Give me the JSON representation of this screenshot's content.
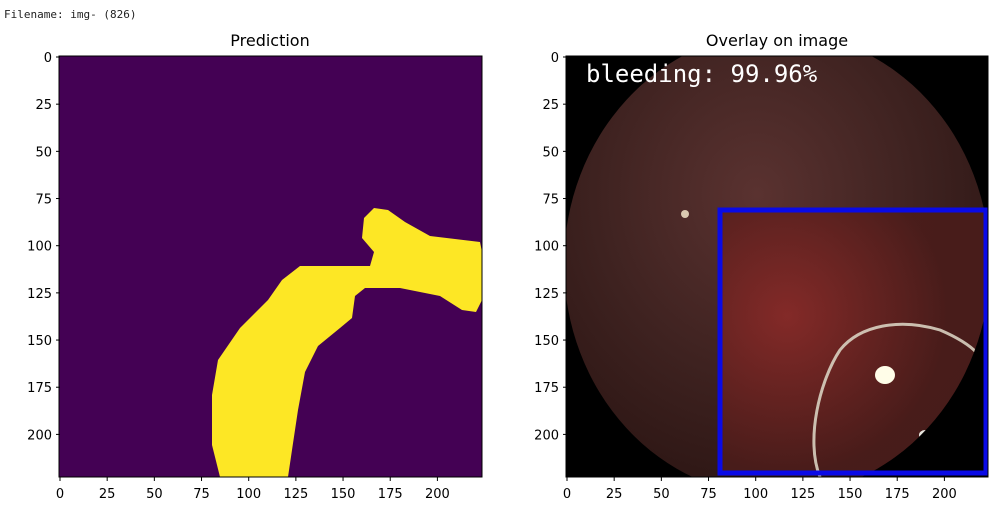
{
  "filename_line": "Filename: img- (826)",
  "left_panel": {
    "title": "Prediction",
    "x_ticks": [
      "0",
      "25",
      "50",
      "75",
      "100",
      "125",
      "150",
      "175",
      "200"
    ],
    "y_ticks": [
      "0",
      "25",
      "50",
      "75",
      "100",
      "125",
      "150",
      "175",
      "200"
    ],
    "background_color": "#440154",
    "mask_color": "#fde725"
  },
  "right_panel": {
    "title": "Overlay on image",
    "x_ticks": [
      "0",
      "25",
      "50",
      "75",
      "100",
      "125",
      "150",
      "175",
      "200"
    ],
    "y_ticks": [
      "0",
      "25",
      "50",
      "75",
      "100",
      "125",
      "150",
      "175",
      "200"
    ],
    "label": "bleeding: 99.96%",
    "box_color": "#0a0ae6",
    "label_color": "#ffffff"
  }
}
